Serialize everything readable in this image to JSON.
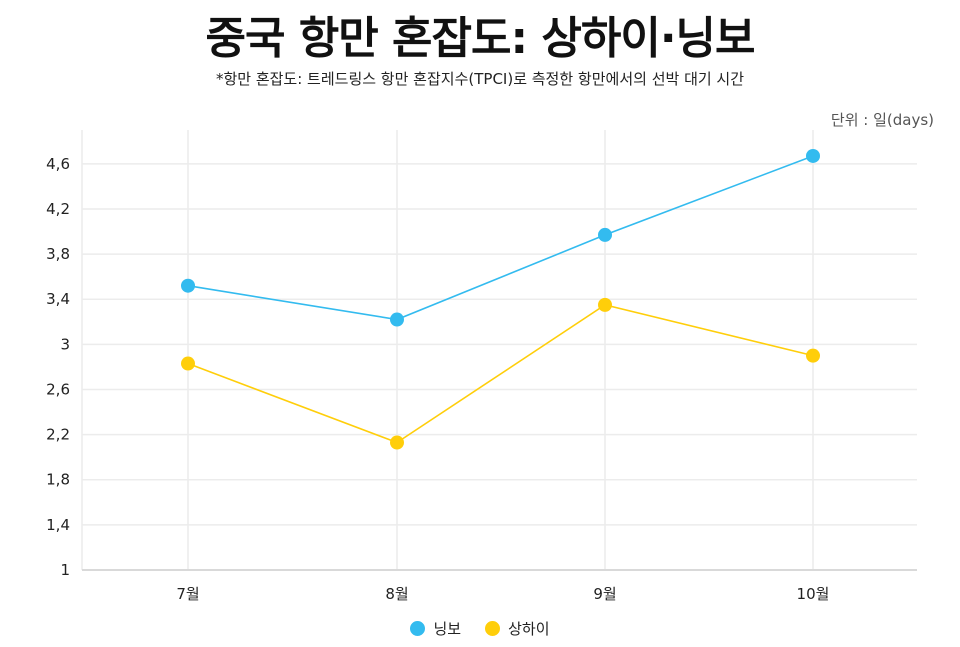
{
  "header": {
    "title": "중국 항만 혼잡도: 상하이·닝보",
    "subtitle": "*항만 혼잡도: 트레드링스 항만 혼잡지수(TPCI)로 측정한 항만에서의 선박 대기 시간",
    "unit": "단위 : 일(days)"
  },
  "chart_data": {
    "type": "line",
    "categories": [
      "7월",
      "8월",
      "9월",
      "10월"
    ],
    "series": [
      {
        "name": "닝보",
        "color": "#33bbef",
        "values": [
          3.52,
          3.22,
          3.97,
          4.67
        ]
      },
      {
        "name": "상하이",
        "color": "#ffce0a",
        "values": [
          2.83,
          2.13,
          3.35,
          2.9
        ]
      }
    ],
    "y_ticks": [
      "1",
      "1,4",
      "1,8",
      "2,2",
      "2,6",
      "3",
      "3,4",
      "3,8",
      "4,2",
      "4,6"
    ],
    "ylim": [
      1,
      4.9
    ],
    "grid": true,
    "legend_position": "bottom"
  }
}
